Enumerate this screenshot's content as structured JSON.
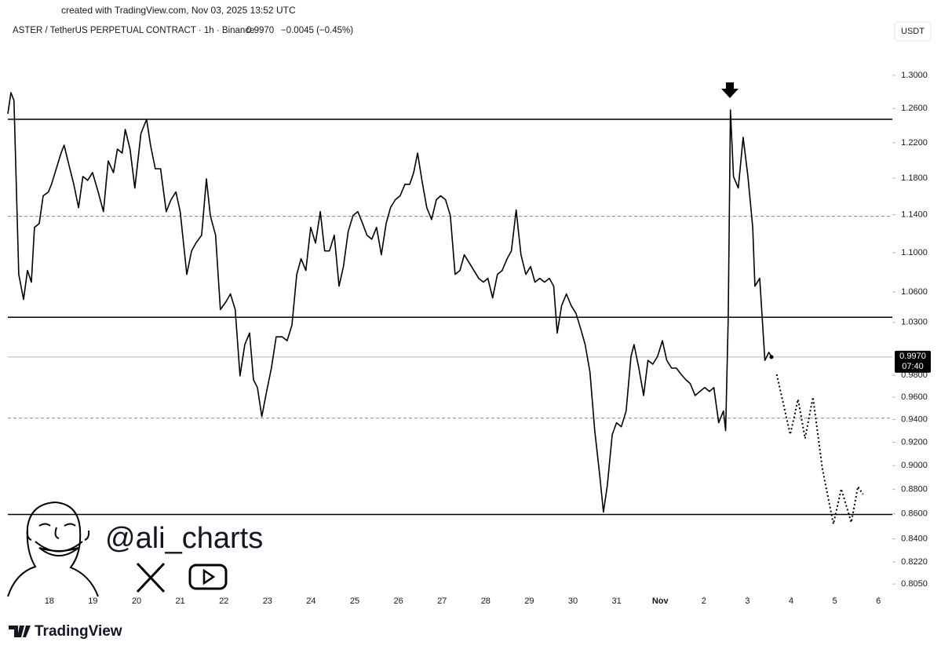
{
  "credit": "created with TradingView.com, Nov 03, 2025 13:52 UTC",
  "header": {
    "symbol": "ASTER / TetherUS PERPETUAL CONTRACT · 1h · Binance",
    "price": "0.9970",
    "change": "−0.0045 (−0.45%)",
    "currency": "USDT"
  },
  "handle": "@ali_charts",
  "brand": "TradingView",
  "chart_data": {
    "type": "line",
    "log_scale": true,
    "ylim": [
      0.7956,
      1.34
    ],
    "xlim": [
      -0.95,
      19.32
    ],
    "yticks": [
      {
        "value": 1.3,
        "label": "1.3000"
      },
      {
        "value": 1.26,
        "label": "1.2600"
      },
      {
        "value": 1.22,
        "label": "1.2200"
      },
      {
        "value": 1.18,
        "label": "1.1800"
      },
      {
        "value": 1.14,
        "label": "1.1400"
      },
      {
        "value": 1.1,
        "label": "1.1000"
      },
      {
        "value": 1.06,
        "label": "1.0600"
      },
      {
        "value": 1.03,
        "label": "1.0300"
      },
      {
        "value": 0.98,
        "label": "0.9800"
      },
      {
        "value": 0.96,
        "label": "0.9600"
      },
      {
        "value": 0.94,
        "label": "0.9400"
      },
      {
        "value": 0.92,
        "label": "0.9200"
      },
      {
        "value": 0.9,
        "label": "0.9000"
      },
      {
        "value": 0.88,
        "label": "0.8800"
      },
      {
        "value": 0.86,
        "label": "0.8600"
      },
      {
        "value": 0.84,
        "label": "0.8400"
      },
      {
        "value": 0.822,
        "label": "0.8220"
      },
      {
        "value": 0.805,
        "label": "0.8050"
      }
    ],
    "xticks": [
      {
        "value": 0,
        "label": "18"
      },
      {
        "value": 1,
        "label": "19"
      },
      {
        "value": 2,
        "label": "20"
      },
      {
        "value": 3,
        "label": "21"
      },
      {
        "value": 4,
        "label": "22"
      },
      {
        "value": 5,
        "label": "23"
      },
      {
        "value": 6,
        "label": "24"
      },
      {
        "value": 7,
        "label": "25"
      },
      {
        "value": 8,
        "label": "26"
      },
      {
        "value": 9,
        "label": "27"
      },
      {
        "value": 10,
        "label": "28"
      },
      {
        "value": 11,
        "label": "29"
      },
      {
        "value": 12,
        "label": "30"
      },
      {
        "value": 13,
        "label": "31"
      },
      {
        "value": 14,
        "label": "Nov"
      },
      {
        "value": 15,
        "label": "2"
      },
      {
        "value": 16,
        "label": "3"
      },
      {
        "value": 17,
        "label": "4"
      },
      {
        "value": 18,
        "label": "5"
      },
      {
        "value": 19,
        "label": "6"
      }
    ],
    "last_price": {
      "value": 0.997,
      "label": "0.9970",
      "countdown": "07:40"
    },
    "hlines": [
      {
        "value": 1.2472,
        "style": "solid"
      },
      {
        "value": 1.1383,
        "style": "dashed"
      },
      {
        "value": 1.035,
        "style": "solid"
      },
      {
        "value": 0.9412,
        "style": "dashed"
      },
      {
        "value": 0.8595,
        "style": "solid"
      }
    ],
    "series": [
      {
        "color": "#000000",
        "style": "solid",
        "x": [
          -0.95,
          -0.88,
          -0.81,
          -0.7,
          -0.59,
          -0.5,
          -0.41,
          -0.34,
          -0.23,
          -0.14,
          -0.02,
          0.05,
          0.16,
          0.27,
          0.34,
          0.45,
          0.56,
          0.67,
          0.77,
          0.88,
          0.99,
          1.12,
          1.24,
          1.35,
          1.47,
          1.56,
          1.67,
          1.74,
          1.85,
          1.96,
          2.1,
          2.23,
          2.32,
          2.43,
          2.55,
          2.68,
          2.79,
          2.9,
          3.0,
          3.15,
          3.26,
          3.36,
          3.49,
          3.6,
          3.69,
          3.81,
          3.92,
          4.05,
          4.15,
          4.26,
          4.37,
          4.48,
          4.59,
          4.68,
          4.77,
          4.87,
          4.98,
          5.09,
          5.2,
          5.34,
          5.45,
          5.56,
          5.67,
          5.77,
          5.88,
          5.99,
          6.1,
          6.21,
          6.31,
          6.42,
          6.53,
          6.64,
          6.74,
          6.85,
          6.96,
          7.07,
          7.18,
          7.28,
          7.39,
          7.5,
          7.61,
          7.72,
          7.82,
          7.93,
          8.04,
          8.15,
          8.26,
          8.35,
          8.44,
          8.54,
          8.65,
          8.76,
          8.87,
          8.97,
          9.08,
          9.19,
          9.3,
          9.41,
          9.51,
          9.62,
          9.73,
          9.84,
          9.95,
          10.05,
          10.16,
          10.27,
          10.38,
          10.49,
          10.59,
          10.7,
          10.81,
          10.92,
          11.03,
          11.13,
          11.24,
          11.35,
          11.46,
          11.56,
          11.64,
          11.74,
          11.85,
          11.96,
          12.07,
          12.18,
          12.28,
          12.39,
          12.5,
          12.61,
          12.7,
          12.79,
          12.9,
          13.0,
          13.11,
          13.22,
          13.33,
          13.4,
          13.51,
          13.62,
          13.72,
          13.83,
          13.94,
          14.05,
          14.15,
          14.26,
          14.37,
          14.48,
          14.59,
          14.69,
          14.8,
          14.91,
          15.02,
          15.13,
          15.23,
          15.34,
          15.45,
          15.5,
          15.56,
          15.61,
          15.68,
          15.79,
          15.9,
          16.01,
          16.12,
          16.17,
          16.28,
          16.4,
          16.49,
          16.55
        ],
        "values": [
          1.2537,
          1.279,
          1.2696,
          1.0777,
          1.0526,
          1.0817,
          1.0698,
          1.1265,
          1.1307,
          1.1605,
          1.1647,
          1.1732,
          1.1905,
          1.2082,
          1.2172,
          1.1949,
          1.1732,
          1.1476,
          1.1818,
          1.1775,
          1.1862,
          1.1647,
          1.1434,
          1.1993,
          1.1862,
          1.2127,
          1.2082,
          1.2353,
          1.2127,
          1.169,
          1.2308,
          1.2472,
          1.2172,
          1.1905,
          1.1905,
          1.1434,
          1.1562,
          1.1647,
          1.1434,
          1.0777,
          1.1018,
          1.11,
          1.1182,
          1.1792,
          1.1391,
          1.1182,
          1.0426,
          1.0503,
          1.058,
          1.0426,
          0.9794,
          1.0087,
          1.0198,
          0.9758,
          0.9687,
          0.9426,
          0.9651,
          0.9866,
          1.0161,
          1.0161,
          1.0124,
          1.0274,
          1.0777,
          1.0937,
          1.0817,
          1.1265,
          1.11,
          1.1434,
          1.1018,
          1.1018,
          1.1182,
          1.0658,
          1.0857,
          1.1223,
          1.1391,
          1.1434,
          1.1307,
          1.1182,
          1.1141,
          1.1265,
          1.0978,
          1.1307,
          1.1476,
          1.1562,
          1.1605,
          1.1732,
          1.1732,
          1.1862,
          1.2082,
          1.1775,
          1.1476,
          1.1349,
          1.1562,
          1.1605,
          1.1562,
          1.1391,
          1.0777,
          1.0817,
          1.0978,
          1.0897,
          1.0817,
          1.0737,
          1.0698,
          1.0737,
          1.0541,
          1.0777,
          1.0817,
          1.0937,
          1.1018,
          1.1451,
          1.0978,
          1.0777,
          1.0857,
          1.0698,
          1.0737,
          1.0698,
          1.0737,
          1.0658,
          1.0198,
          1.0464,
          1.058,
          1.0464,
          1.0388,
          1.0236,
          1.0087,
          0.983,
          0.9302,
          0.8935,
          0.8614,
          0.8837,
          0.9268,
          0.9371,
          0.9336,
          0.9475,
          0.9976,
          1.0087,
          0.9866,
          0.9615,
          0.9939,
          0.9903,
          0.9976,
          1.0124,
          0.9939,
          0.9866,
          0.9866,
          0.9808,
          0.9758,
          0.9722,
          0.9615,
          0.9651,
          0.9687,
          0.9651,
          0.9687,
          0.9371,
          0.9475,
          0.9302,
          1.035,
          1.2583,
          1.1818,
          1.169,
          1.2262,
          1.1818,
          1.1265,
          1.0658,
          1.0737,
          0.9939,
          1.0013,
          0.997
        ]
      },
      {
        "color": "#000000",
        "style": "dotted",
        "x": [
          16.67,
          16.98,
          17.16,
          17.32,
          17.5,
          17.72,
          17.97,
          18.15,
          18.38,
          18.53,
          18.65
        ],
        "values": [
          0.9808,
          0.9268,
          0.958,
          0.9234,
          0.96,
          0.8968,
          0.8518,
          0.8805,
          0.8531,
          0.8824,
          0.876
        ]
      }
    ]
  }
}
